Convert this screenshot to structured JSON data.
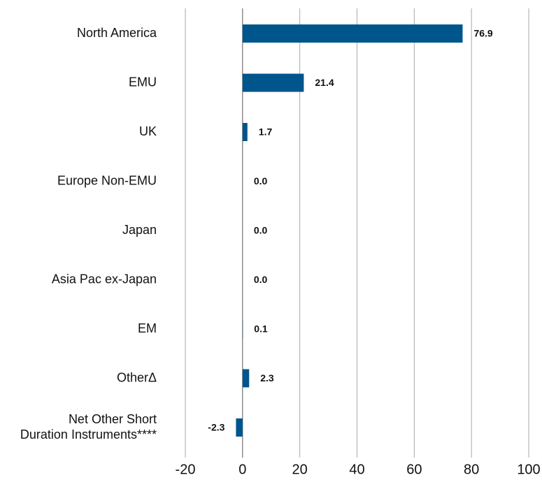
{
  "chart_data": {
    "type": "bar",
    "orientation": "horizontal",
    "categories": [
      "North America",
      "EMU",
      "UK",
      "Europe Non-EMU",
      "Japan",
      "Asia Pac ex-Japan",
      "EM",
      "OtherΔ",
      "Net Other Short\nDuration Instruments****"
    ],
    "values": [
      76.9,
      21.4,
      1.7,
      0,
      0,
      0,
      0.1,
      2.3,
      -2.3
    ],
    "value_labels": [
      "76.9",
      "21.4",
      "1.7",
      "0.0",
      "0.0",
      "0.0",
      "0.1",
      "2.3",
      "-2.3"
    ],
    "color": "#00558c",
    "xlim": [
      -20,
      100
    ],
    "xticks": [
      -20,
      0,
      20,
      40,
      60,
      80,
      100
    ],
    "grid": true
  }
}
